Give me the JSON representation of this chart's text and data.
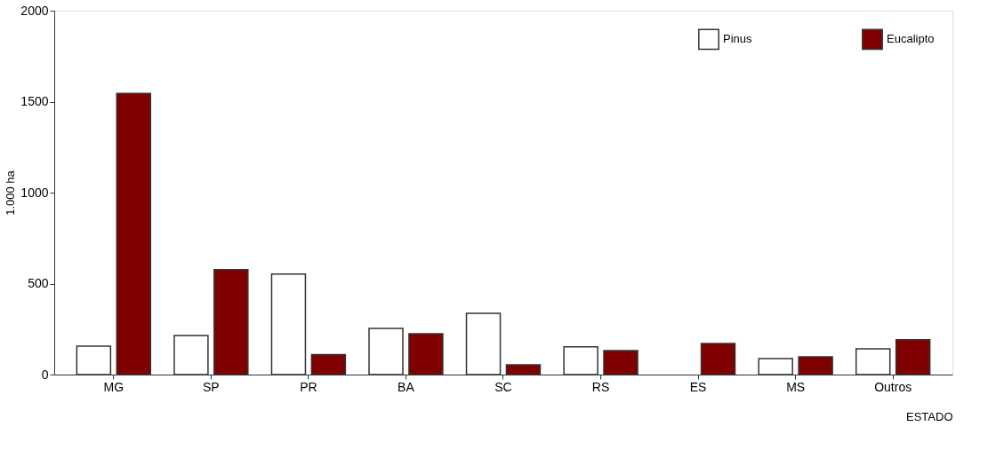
{
  "chart_data": {
    "type": "bar",
    "xlabel": "ESTADO",
    "ylabel": "1.000 ha",
    "categories": [
      "MG",
      "SP",
      "PR",
      "BA",
      "SC",
      "RS",
      "ES",
      "MS",
      "Outros"
    ],
    "series": [
      {
        "name": "Pinus",
        "color": "#ffffff",
        "values": [
          156,
          215,
          553,
          254,
          337,
          152,
          null,
          88,
          142
        ]
      },
      {
        "name": "Eucalipto",
        "color": "#800000",
        "values": [
          1545,
          577,
          110,
          225,
          54,
          132,
          171,
          98,
          191
        ]
      }
    ],
    "ylim": [
      0,
      2000
    ],
    "yticks": [
      0,
      500,
      1000,
      1500,
      2000
    ],
    "grid": false,
    "legend": "top right"
  }
}
